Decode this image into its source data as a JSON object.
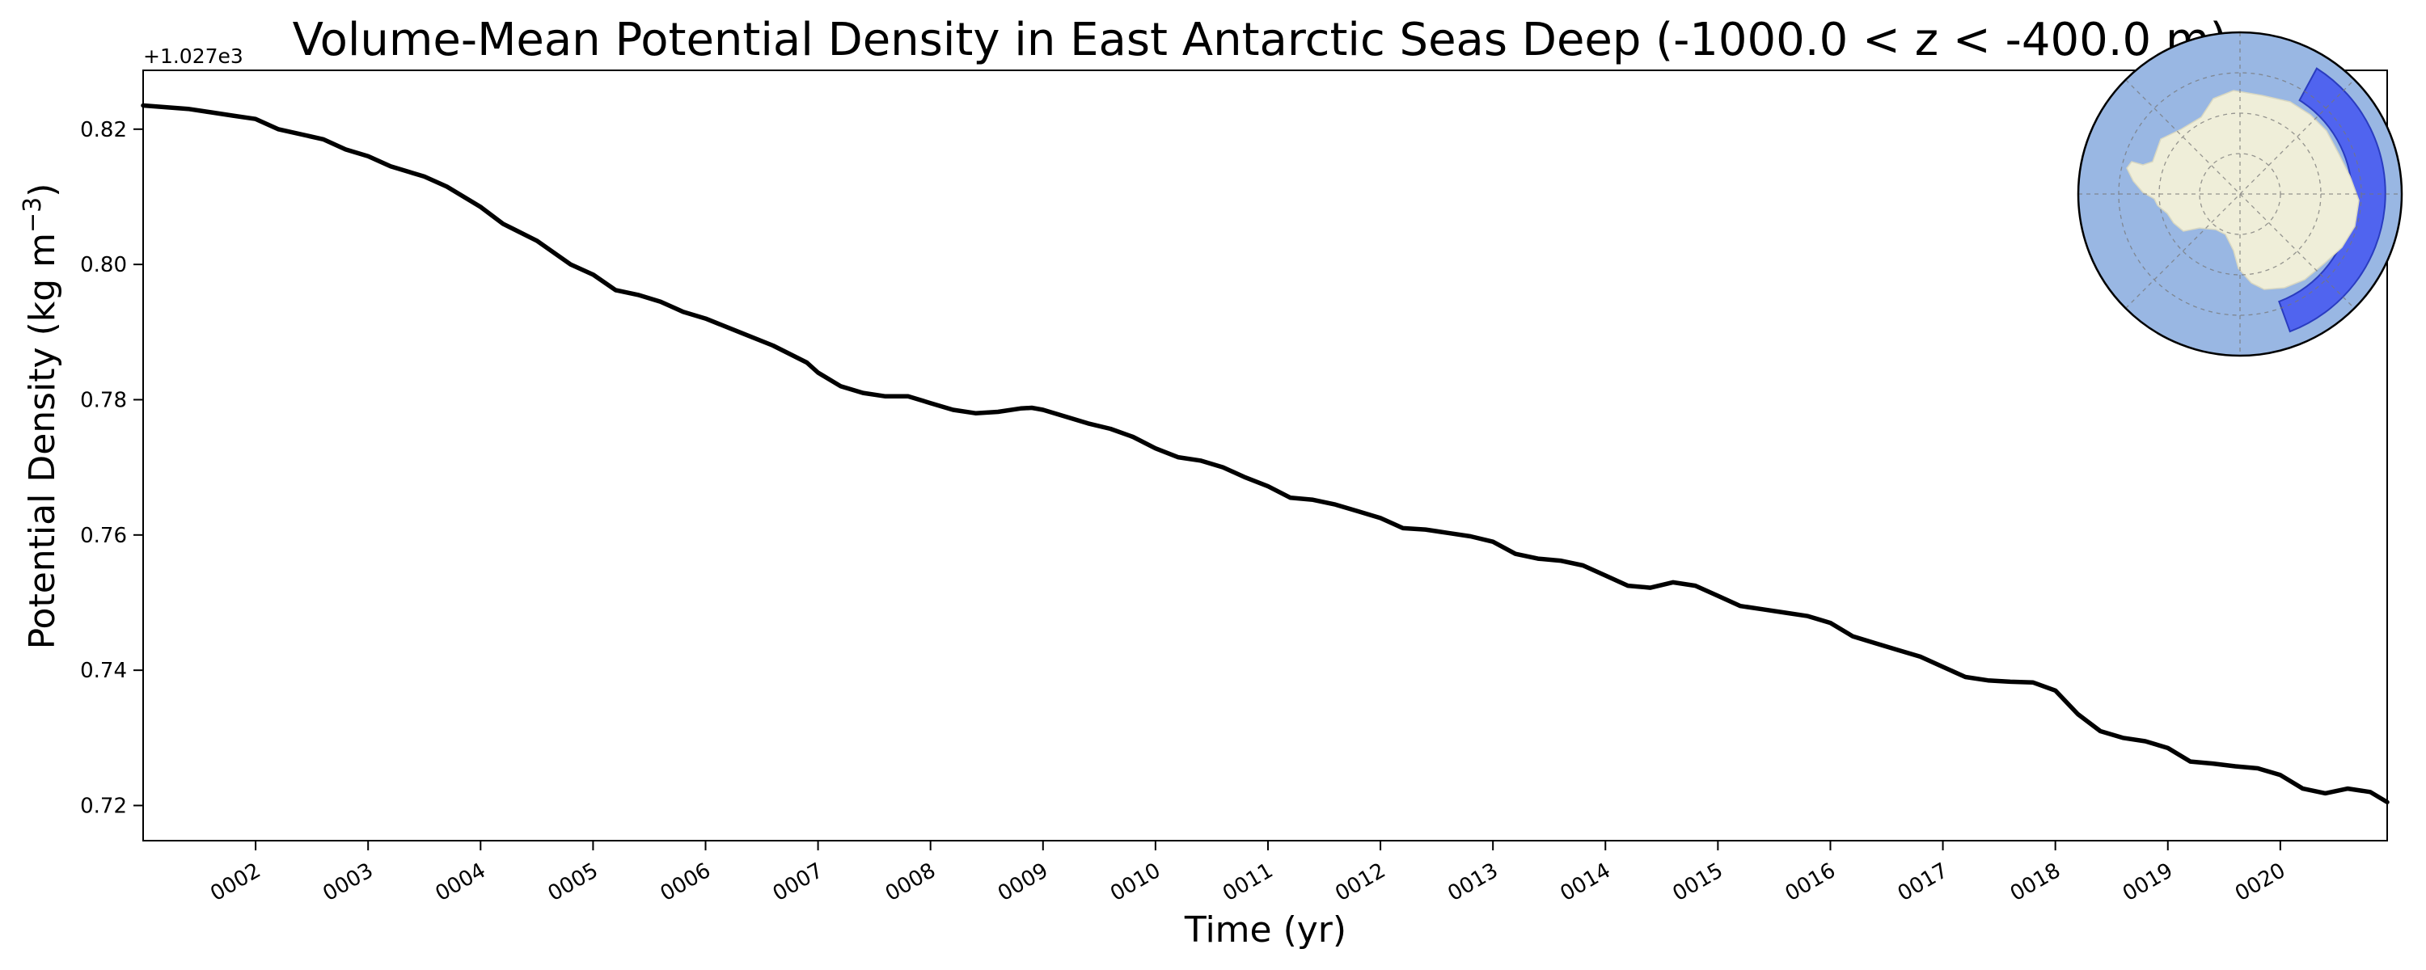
{
  "chart_data": {
    "type": "line",
    "title": "Volume-Mean Potential Density in East Antarctic Seas Deep (-1000.0 < z < -400.0 m)",
    "xlabel": "Time (yr)",
    "ylabel_main": "Potential Density (kg m",
    "ylabel_exp": "−3",
    "ylabel_close": ")",
    "offset_label": "+1.027e3",
    "x_ticks": [
      "0002",
      "0003",
      "0004",
      "0005",
      "0006",
      "0007",
      "0008",
      "0009",
      "0010",
      "0011",
      "0012",
      "0013",
      "0014",
      "0015",
      "0016",
      "0017",
      "0018",
      "0019",
      "0020"
    ],
    "y_ticks": [
      "0.72",
      "0.74",
      "0.76",
      "0.78",
      "0.80",
      "0.82"
    ],
    "xlim": [
      1.0,
      20.95
    ],
    "ylim": [
      0.7148,
      0.8287
    ],
    "grid": false,
    "series": [
      {
        "color": "#000000",
        "x": [
          1.0,
          1.4,
          1.6,
          1.8,
          2.0,
          2.2,
          2.6,
          2.8,
          3.0,
          3.2,
          3.5,
          3.7,
          4.0,
          4.2,
          4.5,
          4.8,
          5.0,
          5.2,
          5.4,
          5.6,
          5.8,
          6.0,
          6.3,
          6.6,
          6.9,
          7.0,
          7.2,
          7.4,
          7.6,
          7.8,
          8.0,
          8.2,
          8.4,
          8.6,
          8.8,
          8.9,
          9.0,
          9.2,
          9.4,
          9.6,
          9.8,
          10.0,
          10.2,
          10.4,
          10.6,
          10.8,
          11.0,
          11.2,
          11.4,
          11.6,
          11.8,
          12.0,
          12.2,
          12.4,
          12.6,
          12.8,
          13.0,
          13.2,
          13.4,
          13.6,
          13.8,
          14.0,
          14.2,
          14.4,
          14.6,
          14.8,
          15.0,
          15.2,
          15.4,
          15.6,
          15.8,
          16.0,
          16.2,
          16.4,
          16.6,
          16.8,
          17.0,
          17.2,
          17.4,
          17.6,
          17.8,
          18.0,
          18.2,
          18.4,
          18.6,
          18.8,
          19.0,
          19.2,
          19.4,
          19.6,
          19.8,
          20.0,
          20.2,
          20.4,
          20.6,
          20.8,
          20.95
        ],
        "y": [
          0.8235,
          0.823,
          0.8225,
          0.822,
          0.8215,
          0.82,
          0.8185,
          0.817,
          0.816,
          0.8145,
          0.813,
          0.8115,
          0.8085,
          0.806,
          0.8035,
          0.8,
          0.7985,
          0.7962,
          0.7955,
          0.7945,
          0.793,
          0.792,
          0.79,
          0.788,
          0.7855,
          0.784,
          0.782,
          0.781,
          0.7805,
          0.7805,
          0.7795,
          0.7785,
          0.778,
          0.7782,
          0.7787,
          0.7788,
          0.7785,
          0.7775,
          0.7765,
          0.7757,
          0.7745,
          0.7728,
          0.7715,
          0.771,
          0.77,
          0.7685,
          0.7672,
          0.7655,
          0.7652,
          0.7645,
          0.7635,
          0.7625,
          0.761,
          0.7608,
          0.7603,
          0.7598,
          0.759,
          0.7572,
          0.7565,
          0.7562,
          0.7555,
          0.754,
          0.7525,
          0.7522,
          0.753,
          0.7525,
          0.751,
          0.7495,
          0.749,
          0.7485,
          0.748,
          0.747,
          0.745,
          0.744,
          0.743,
          0.742,
          0.7405,
          0.739,
          0.7385,
          0.7383,
          0.7382,
          0.737,
          0.7335,
          0.731,
          0.73,
          0.7295,
          0.7285,
          0.7265,
          0.7262,
          0.7258,
          0.7255,
          0.7245,
          0.7225,
          0.7218,
          0.7225,
          0.722,
          0.7205
        ]
      }
    ]
  },
  "inset_map": {
    "ocean_color": "#99b7e3",
    "land_color": "#efeed9",
    "region_color": "#5064ef",
    "border_color": "#000000"
  }
}
